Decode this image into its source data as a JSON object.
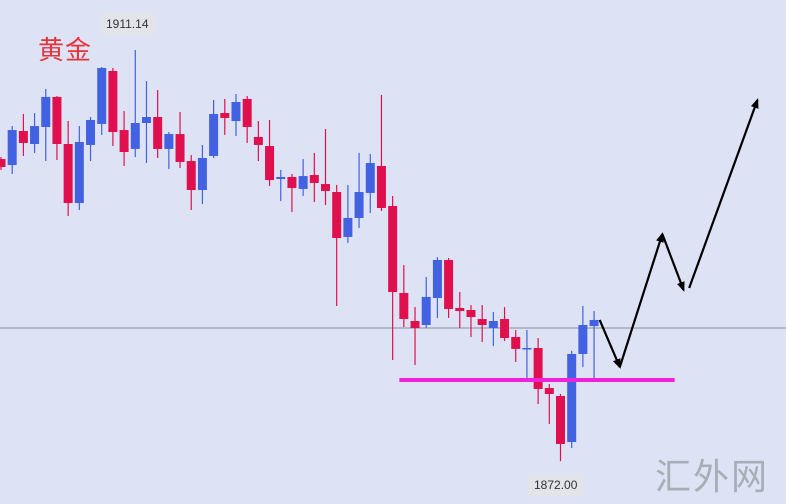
{
  "chart_data": {
    "type": "candlestick",
    "title": "黄金",
    "colors": {
      "up": "#4262e2",
      "down": "#e0104e",
      "support": "#ee22dd",
      "reference": "#8a8fa0",
      "annotation": "#000000",
      "background": "#dde3f4"
    },
    "high_label": "1911.14",
    "low_label": "1872.00",
    "ylim": [
      1870.2,
      1915.9
    ],
    "candles": [
      {
        "o": 1900.76,
        "c": 1900.0,
        "h": 1900.95,
        "l": 1899.72
      },
      {
        "o": 1900.19,
        "c": 1903.52,
        "h": 1903.9,
        "l": 1899.34
      },
      {
        "o": 1903.43,
        "c": 1902.29,
        "h": 1905.05,
        "l": 1901.05
      },
      {
        "o": 1902.19,
        "c": 1903.9,
        "h": 1905.14,
        "l": 1901.34
      },
      {
        "o": 1903.81,
        "c": 1906.67,
        "h": 1907.43,
        "l": 1900.57
      },
      {
        "o": 1906.67,
        "c": 1902.19,
        "h": 1906.76,
        "l": 1900.67
      },
      {
        "o": 1902.19,
        "c": 1896.57,
        "h": 1904.38,
        "l": 1895.34
      },
      {
        "o": 1896.57,
        "c": 1902.38,
        "h": 1903.9,
        "l": 1895.91
      },
      {
        "o": 1902.1,
        "c": 1904.48,
        "h": 1904.76,
        "l": 1900.57
      },
      {
        "o": 1904.1,
        "c": 1909.43,
        "h": 1909.52,
        "l": 1903.05
      },
      {
        "o": 1909.14,
        "c": 1903.33,
        "h": 1909.43,
        "l": 1902.0
      },
      {
        "o": 1903.52,
        "c": 1901.43,
        "h": 1905.33,
        "l": 1900.1
      },
      {
        "o": 1901.72,
        "c": 1904.19,
        "h": 1911.14,
        "l": 1900.95
      },
      {
        "o": 1904.19,
        "c": 1904.76,
        "h": 1908.19,
        "l": 1900.38
      },
      {
        "o": 1904.76,
        "c": 1901.72,
        "h": 1907.33,
        "l": 1900.86
      },
      {
        "o": 1901.72,
        "c": 1903.14,
        "h": 1903.33,
        "l": 1899.81
      },
      {
        "o": 1903.14,
        "c": 1900.48,
        "h": 1905.24,
        "l": 1899.91
      },
      {
        "o": 1900.57,
        "c": 1897.81,
        "h": 1901.14,
        "l": 1895.91
      },
      {
        "o": 1897.81,
        "c": 1900.86,
        "h": 1902.1,
        "l": 1896.48
      },
      {
        "o": 1901.05,
        "c": 1905.05,
        "h": 1906.38,
        "l": 1900.86
      },
      {
        "o": 1905.14,
        "c": 1904.67,
        "h": 1906.48,
        "l": 1903.05
      },
      {
        "o": 1904.38,
        "c": 1906.19,
        "h": 1906.95,
        "l": 1902.95
      },
      {
        "o": 1906.48,
        "c": 1903.81,
        "h": 1906.76,
        "l": 1902.29
      },
      {
        "o": 1902.86,
        "c": 1902.1,
        "h": 1904.38,
        "l": 1900.57
      },
      {
        "o": 1902.0,
        "c": 1898.76,
        "h": 1904.48,
        "l": 1898.19
      },
      {
        "o": 1898.86,
        "c": 1899.05,
        "h": 1899.72,
        "l": 1896.76
      },
      {
        "o": 1899.05,
        "c": 1898.0,
        "h": 1899.34,
        "l": 1895.72
      },
      {
        "o": 1897.91,
        "c": 1899.14,
        "h": 1900.76,
        "l": 1897.24
      },
      {
        "o": 1899.24,
        "c": 1898.48,
        "h": 1901.34,
        "l": 1896.67
      },
      {
        "o": 1898.38,
        "c": 1897.72,
        "h": 1903.62,
        "l": 1896.38
      },
      {
        "o": 1897.62,
        "c": 1893.24,
        "h": 1898.29,
        "l": 1886.77
      },
      {
        "o": 1893.34,
        "c": 1895.15,
        "h": 1898.29,
        "l": 1892.77
      },
      {
        "o": 1895.15,
        "c": 1897.62,
        "h": 1901.34,
        "l": 1894.19
      },
      {
        "o": 1897.53,
        "c": 1900.38,
        "h": 1901.24,
        "l": 1895.62
      },
      {
        "o": 1900.1,
        "c": 1896.1,
        "h": 1906.86,
        "l": 1895.81
      },
      {
        "o": 1896.29,
        "c": 1888.1,
        "h": 1897.24,
        "l": 1881.63
      },
      {
        "o": 1888.01,
        "c": 1885.53,
        "h": 1890.67,
        "l": 1884.77
      },
      {
        "o": 1885.34,
        "c": 1884.67,
        "h": 1886.67,
        "l": 1881.15
      },
      {
        "o": 1884.96,
        "c": 1887.63,
        "h": 1889.53,
        "l": 1884.67
      },
      {
        "o": 1887.53,
        "c": 1891.15,
        "h": 1891.43,
        "l": 1885.63
      },
      {
        "o": 1891.15,
        "c": 1886.48,
        "h": 1891.34,
        "l": 1885.63
      },
      {
        "o": 1886.58,
        "c": 1886.29,
        "h": 1888.1,
        "l": 1884.67
      },
      {
        "o": 1886.39,
        "c": 1885.72,
        "h": 1886.86,
        "l": 1883.82
      },
      {
        "o": 1885.53,
        "c": 1884.96,
        "h": 1886.86,
        "l": 1883.34
      },
      {
        "o": 1884.67,
        "c": 1885.34,
        "h": 1886.2,
        "l": 1882.96
      },
      {
        "o": 1885.53,
        "c": 1883.72,
        "h": 1886.67,
        "l": 1883.44
      },
      {
        "o": 1883.82,
        "c": 1882.68,
        "h": 1884.48,
        "l": 1881.44
      },
      {
        "o": 1882.68,
        "c": 1882.77,
        "h": 1884.48,
        "l": 1879.91
      },
      {
        "o": 1882.77,
        "c": 1878.87,
        "h": 1883.72,
        "l": 1877.44
      },
      {
        "o": 1878.96,
        "c": 1878.39,
        "h": 1879.34,
        "l": 1875.54
      },
      {
        "o": 1878.2,
        "c": 1873.63,
        "h": 1878.39,
        "l": 1872.0
      },
      {
        "o": 1873.82,
        "c": 1882.2,
        "h": 1882.49,
        "l": 1873.25
      },
      {
        "o": 1882.2,
        "c": 1884.96,
        "h": 1886.77,
        "l": 1880.96
      },
      {
        "o": 1884.86,
        "c": 1885.44,
        "h": 1886.29,
        "l": 1879.91
      }
    ],
    "reference_level": 1884.67,
    "support_level": {
      "price": 1879.72,
      "from_index": 35.6,
      "to_index": 60.2
    },
    "projection_path": [
      {
        "index": 53.5,
        "price": 1885.44
      },
      {
        "index": 55.3,
        "price": 1880.96
      },
      {
        "index": 59.1,
        "price": 1893.62
      },
      {
        "index": 61.0,
        "price": 1888.29
      },
      {
        "index": 61.5,
        "price": 1888.48
      },
      {
        "index": 67.6,
        "price": 1906.38
      }
    ]
  },
  "watermark": "汇外网"
}
